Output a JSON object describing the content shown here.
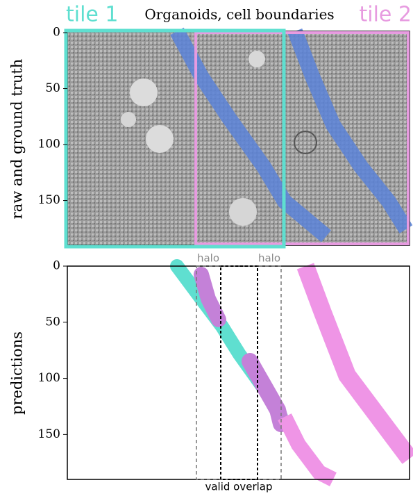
{
  "chart_data": [
    {
      "type": "image",
      "title": "Organoids, cell boundaries",
      "ylabel": "raw and ground truth",
      "ylim": [
        0,
        190
      ],
      "yticks": [
        0,
        50,
        100,
        150
      ],
      "invert_y": true,
      "annotations": [
        "tile 1",
        "tile 2"
      ]
    },
    {
      "type": "image",
      "ylabel": "predictions",
      "ylim": [
        0,
        190
      ],
      "yticks": [
        0,
        50,
        100,
        150
      ],
      "invert_y": true,
      "annotations": [
        "halo",
        "halo",
        "valid overlap"
      ]
    }
  ]
}
